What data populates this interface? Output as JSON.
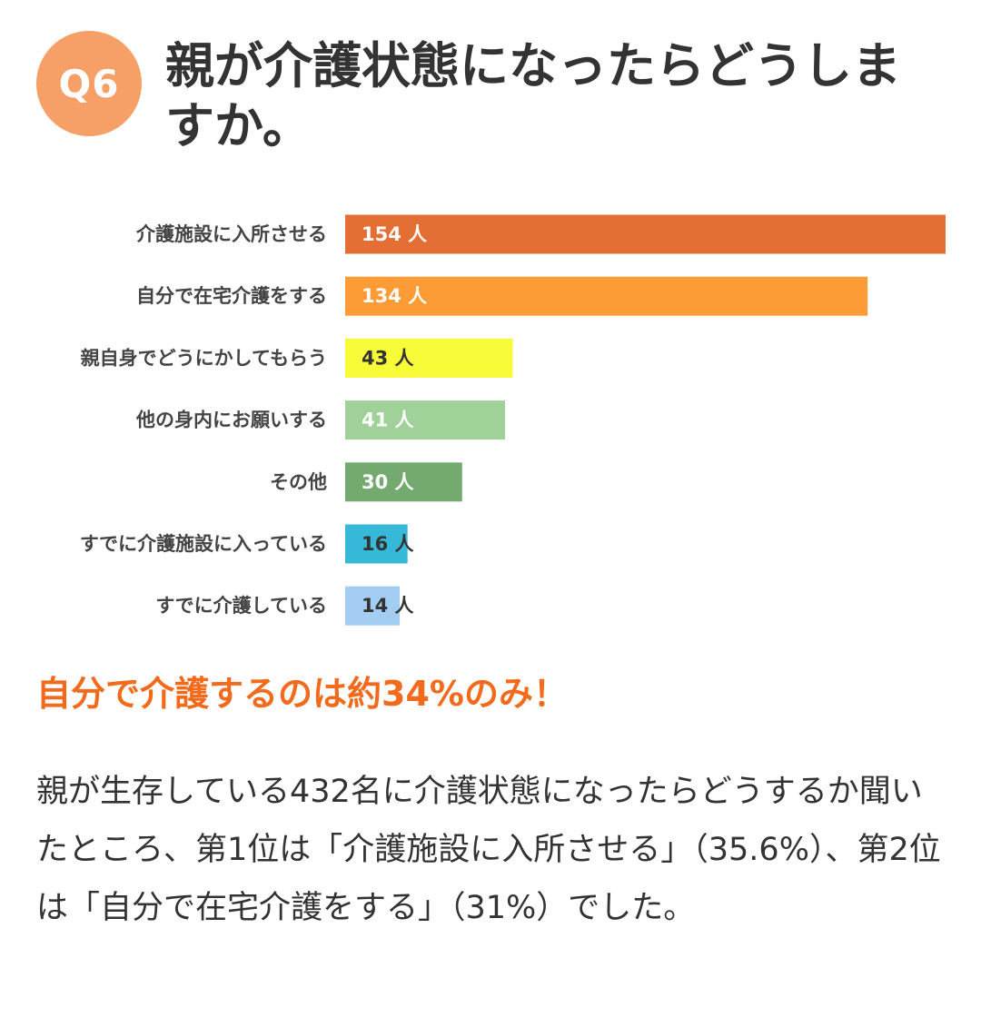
{
  "question": {
    "badge": "Q6",
    "title": "親が介護状態になったらどうしますか。"
  },
  "chart_data": {
    "type": "bar",
    "orientation": "horizontal",
    "title": "",
    "xlabel": "",
    "ylabel": "",
    "xlim": [
      0,
      154
    ],
    "grid": false,
    "categories": [
      "介護施設に入所させる",
      "自分で在宅介護をする",
      "親自身でどうにかしてもらう",
      "他の身内にお願いする",
      "その他",
      "すでに介護施設に入っている",
      "すでに介護している"
    ],
    "values": [
      154,
      134,
      43,
      41,
      30,
      16,
      14
    ],
    "value_labels": [
      "154 人",
      "134 人",
      "43 人",
      "41 人",
      "30 人",
      "16 人",
      "14 人"
    ],
    "colors": [
      "#e36f35",
      "#fd9c36",
      "#f8fb38",
      "#9fd198",
      "#74aa6f",
      "#36b9d9",
      "#a3cdf3"
    ],
    "label_colors": [
      "#ffffff",
      "#ffffff",
      "#333333",
      "#ffffff",
      "#ffffff",
      "#333333",
      "#333333"
    ]
  },
  "summary": {
    "highlight": "自分で介護するのは約34%のみ！",
    "body": "親が生存している432名に介護状態になったらどうするか聞いたところ、第1位は「介護施設に入所させる」（35.6%）、第2位は「自分で在宅介護をする」（31%）でした。"
  }
}
